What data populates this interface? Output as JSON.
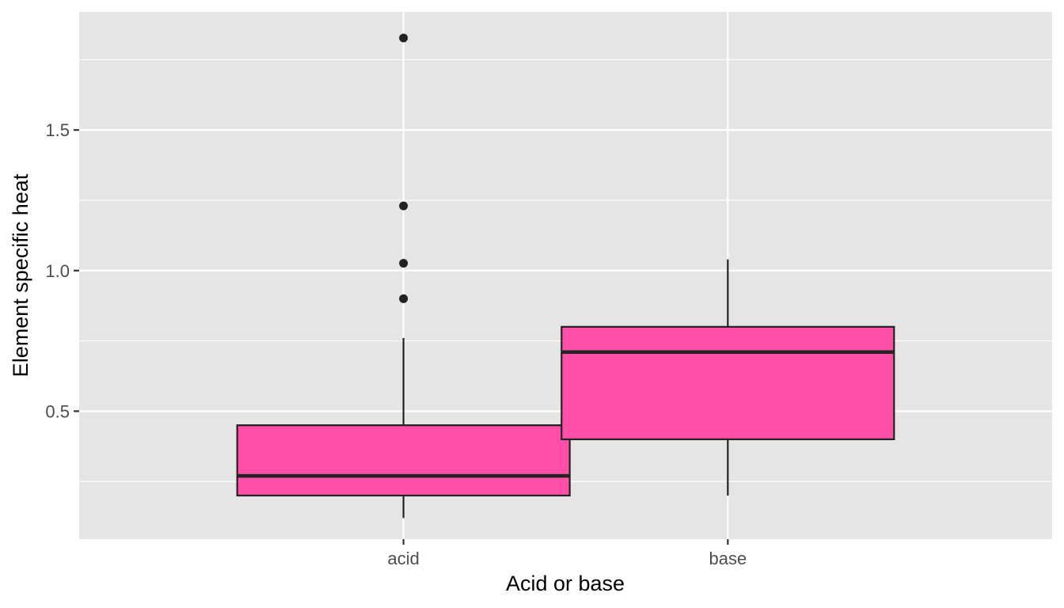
{
  "chart_data": {
    "type": "boxplot",
    "title": "",
    "xlabel": "Acid or base",
    "ylabel": "Element specific heat",
    "categories": [
      "acid",
      "base"
    ],
    "ylim": [
      0.045,
      1.92
    ],
    "y_ticks": [
      0.5,
      1.0,
      1.5
    ],
    "y_tick_labels": [
      "0.5",
      "1.0",
      "1.5"
    ],
    "grid": true,
    "legend": "none",
    "boxes": [
      {
        "category": "acid",
        "whisker_low": 0.12,
        "q1": 0.2,
        "median": 0.27,
        "q3": 0.45,
        "whisker_high": 0.76,
        "outliers": [
          0.9,
          1.026,
          1.23,
          1.827
        ]
      },
      {
        "category": "base",
        "whisker_low": 0.2,
        "q1": 0.4,
        "median": 0.71,
        "q3": 0.8,
        "whisker_high": 1.04,
        "outliers": []
      }
    ],
    "colors": {
      "panel_background": "#e5e5e5",
      "grid_line": "#ffffff",
      "box_fill": "#ff4fa7",
      "box_outline": "#222222",
      "outlier": "#222222",
      "tick_text": "#4d4d4d",
      "axis_title": "#000000",
      "tick_mark": "#333333"
    }
  }
}
